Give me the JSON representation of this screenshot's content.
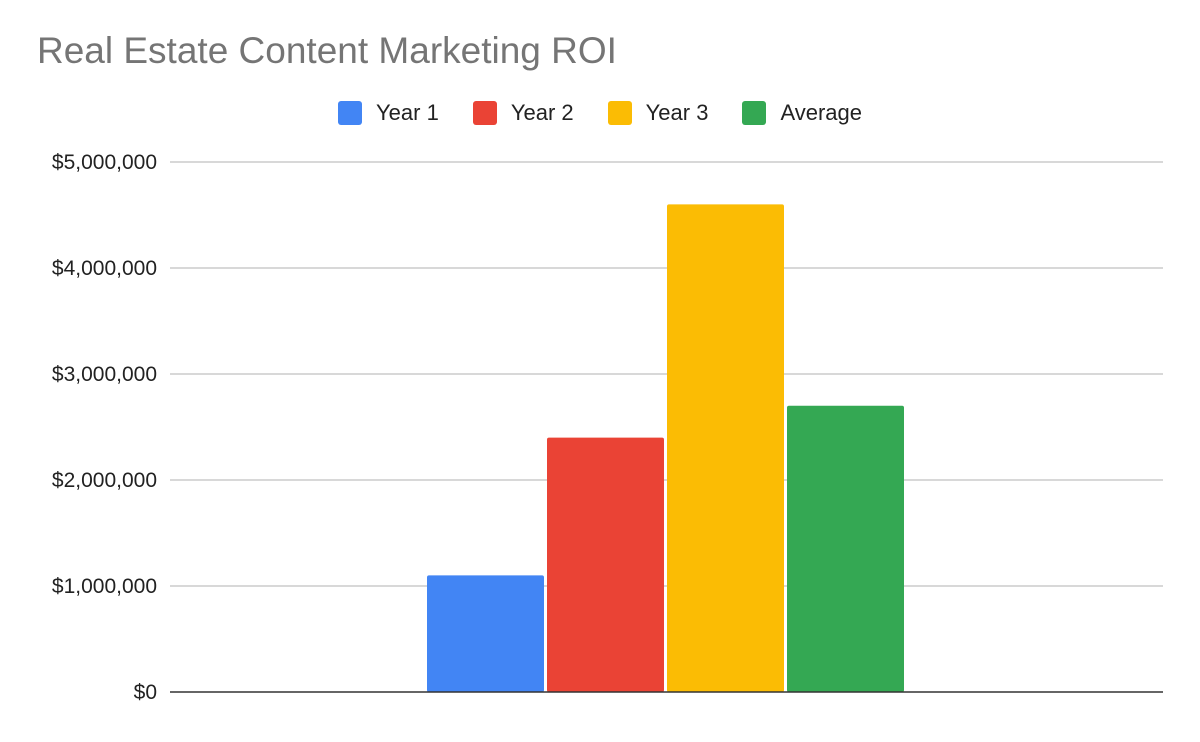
{
  "chart_data": {
    "type": "bar",
    "title": "Real Estate Content Marketing ROI",
    "xlabel": "",
    "ylabel": "",
    "categories": [
      ""
    ],
    "series": [
      {
        "name": "Year 1",
        "values": [
          1100000
        ],
        "color": "#4285f4"
      },
      {
        "name": "Year 2",
        "values": [
          2400000
        ],
        "color": "#ea4335"
      },
      {
        "name": "Year 3",
        "values": [
          4600000
        ],
        "color": "#fbbc04"
      },
      {
        "name": "Average",
        "values": [
          2700000
        ],
        "color": "#34a853"
      }
    ],
    "ylim": [
      0,
      5000000
    ],
    "yticks": [
      0,
      1000000,
      2000000,
      3000000,
      4000000,
      5000000
    ],
    "ytick_labels": [
      "$0",
      "$1,000,000",
      "$2,000,000",
      "$3,000,000",
      "$4,000,000",
      "$5,000,000"
    ],
    "grid": true,
    "legend_position": "top-center"
  }
}
